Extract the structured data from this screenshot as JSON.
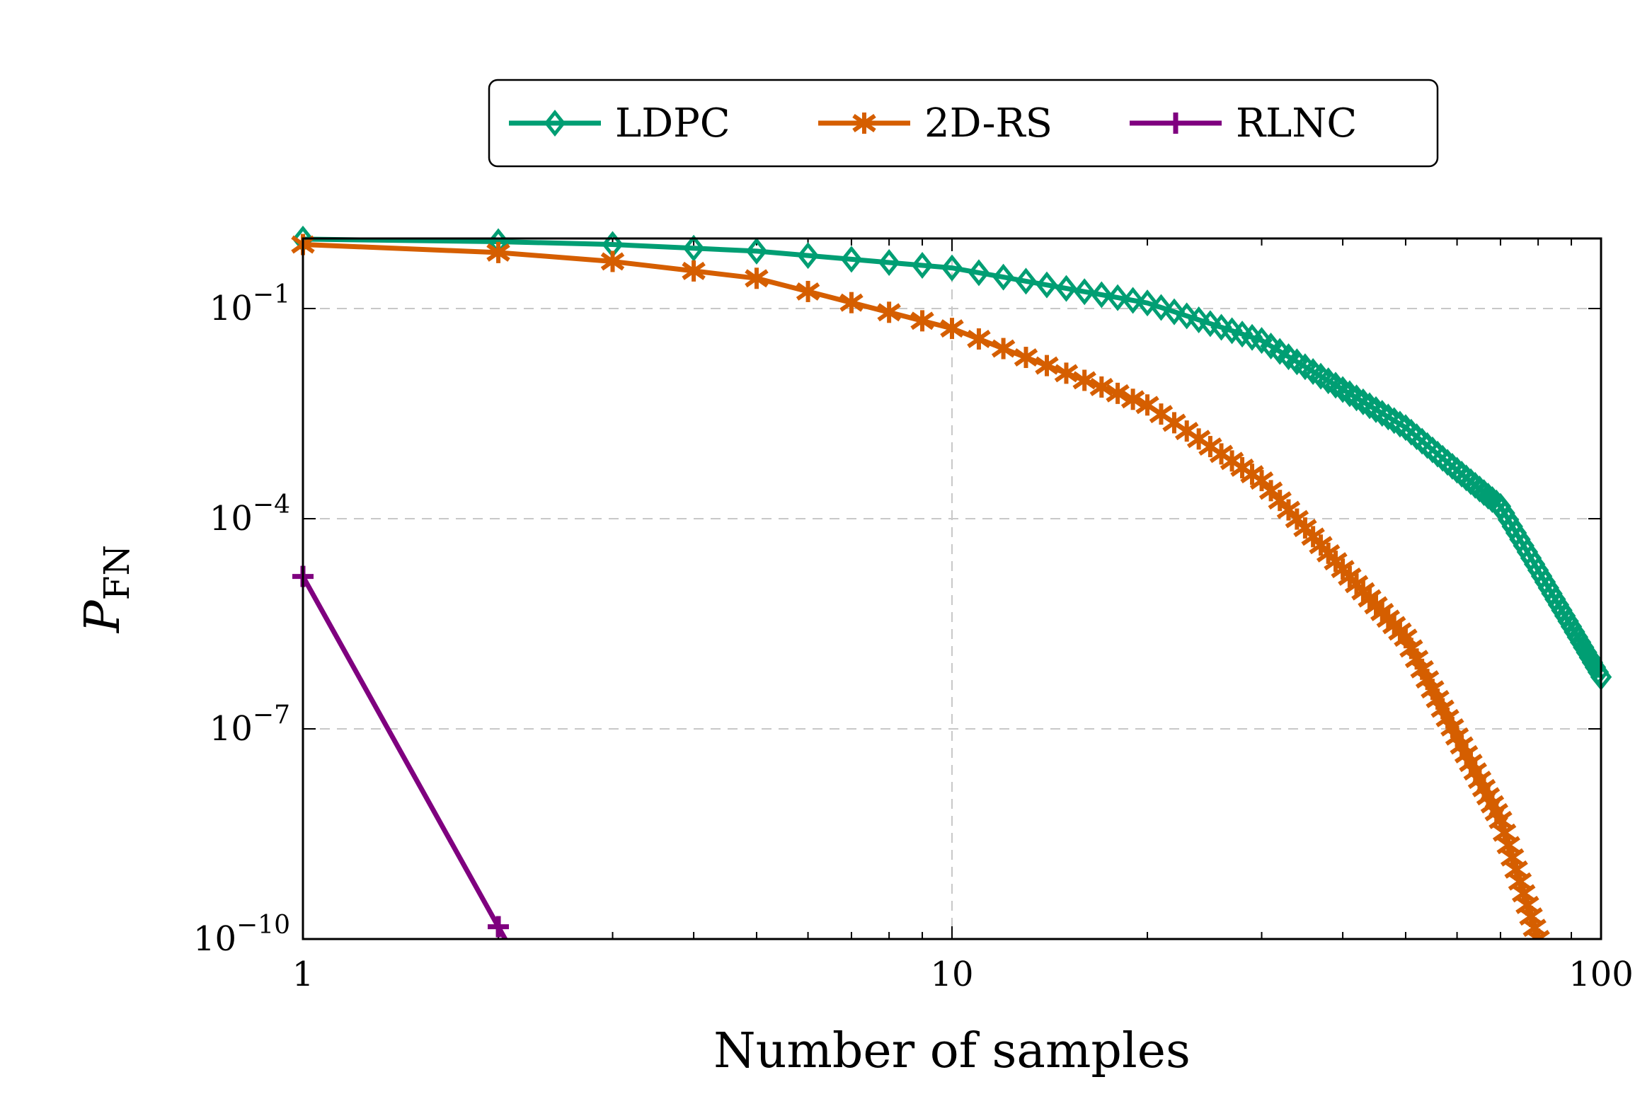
{
  "chart_data": {
    "type": "line",
    "xlabel": "Number of samples",
    "ylabel": "P",
    "ylabel_sub": "FN",
    "x_scale": "log",
    "y_scale": "log",
    "xlim": [
      1,
      100
    ],
    "ylim": [
      1e-10,
      1
    ],
    "x_ticks": [
      {
        "value": 1,
        "label": "1"
      },
      {
        "value": 10,
        "label": "10"
      },
      {
        "value": 100,
        "label": "100"
      }
    ],
    "y_ticks": [
      {
        "value": 0.1,
        "base": "10",
        "exp": "−1"
      },
      {
        "value": 0.0001,
        "base": "10",
        "exp": "−4"
      },
      {
        "value": 1e-07,
        "base": "10",
        "exp": "−7"
      },
      {
        "value": 1e-10,
        "base": "10",
        "exp": "−10"
      }
    ],
    "grid": true,
    "legend_position": "top",
    "series": [
      {
        "name": "LDPC",
        "color": "#009e73",
        "marker": "diamond",
        "x_range": [
          1,
          100
        ],
        "x": [
          1,
          2,
          3,
          5,
          10,
          20,
          30,
          50,
          70,
          100
        ],
        "y": [
          0.98,
          0.9,
          0.82,
          0.66,
          0.38,
          0.12,
          0.035,
          0.002,
          0.00015,
          5.5e-07
        ]
      },
      {
        "name": "2D-RS",
        "color": "#d55e00",
        "marker": "star",
        "x_range": [
          1,
          80
        ],
        "x": [
          1,
          2,
          3,
          5,
          10,
          20,
          30,
          50,
          70,
          80
        ],
        "y": [
          0.82,
          0.63,
          0.47,
          0.27,
          0.052,
          0.0042,
          0.00035,
          2e-06,
          5e-09,
          1e-10
        ]
      },
      {
        "name": "RLNC",
        "color": "#7f007f",
        "marker": "plus",
        "x_range": [
          1,
          2
        ],
        "x": [
          1,
          2
        ],
        "y": [
          1.5e-05,
          1.5e-10
        ]
      }
    ]
  }
}
